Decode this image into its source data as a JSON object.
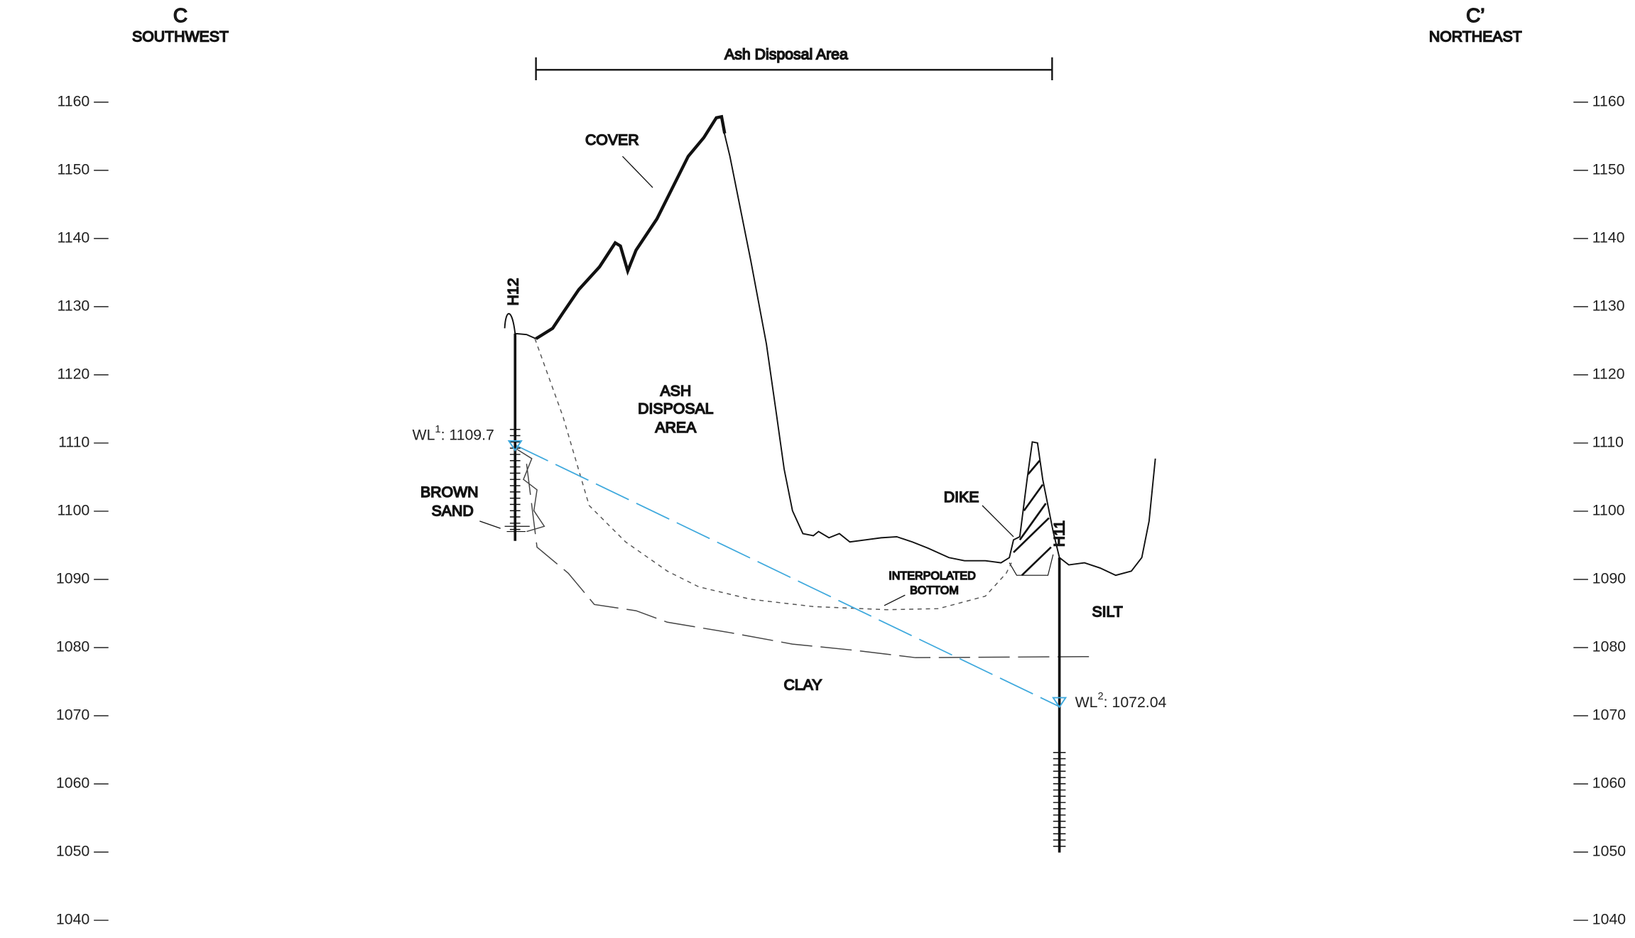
{
  "header": {
    "left_letter": "C",
    "left_direction": "SOUTHWEST",
    "right_letter": "C’",
    "right_direction": "NORTHEAST",
    "span_label": "Ash Disposal Area"
  },
  "elevation_axis": {
    "range": [
      1040,
      1160
    ],
    "ticks": [
      1160,
      1150,
      1140,
      1130,
      1120,
      1110,
      1100,
      1090,
      1080,
      1070,
      1060,
      1050,
      1040
    ]
  },
  "boreholes": [
    {
      "name": "H12"
    },
    {
      "name": "H11"
    }
  ],
  "water_levels": [
    {
      "label": "WL",
      "superscript": "1",
      "text": ": 1109.7",
      "elevation": 1109.7
    },
    {
      "label": "WL",
      "superscript": "2",
      "text": ": 1072.04",
      "elevation": 1072.04
    }
  ],
  "annotations": {
    "cover": "COVER",
    "ash_area": [
      "ASH",
      "DISPOSAL",
      "AREA"
    ],
    "brown_sand": [
      "BROWN",
      "SAND"
    ],
    "dike": "DIKE",
    "interpolated_bottom": [
      "INTERPOLATED",
      "BOTTOM"
    ],
    "silt": "SILT",
    "clay": "CLAY"
  }
}
